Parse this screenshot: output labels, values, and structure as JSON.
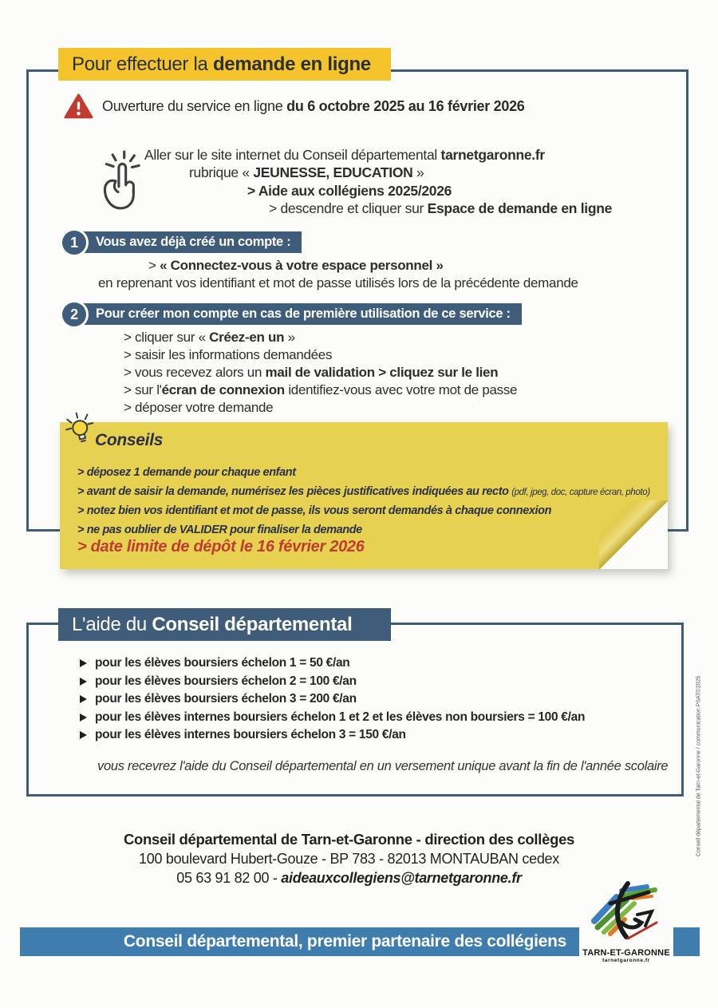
{
  "colors": {
    "accent_blue": "#3f5c7a",
    "band_blue": "#3e7dad",
    "title_yellow": "#f5c32c",
    "note_yellow": "#e6d150",
    "alert_red": "#c13b33"
  },
  "icons": {
    "warning": "warning-triangle",
    "hand": "click-hand",
    "bulb": "lightbulb",
    "bullet": "triangle-right"
  },
  "section_online": {
    "title_segments": [
      [
        "Pour effectuer la ",
        ""
      ],
      [
        "demande en ligne",
        "b"
      ]
    ],
    "alert_segments": [
      [
        "Ouverture du service en ligne ",
        ""
      ],
      [
        "du 6 octobre 2025 au 16 février 2026",
        "b"
      ]
    ],
    "instructions": [
      {
        "segments": [
          [
            "Aller sur le site internet du Conseil départemental ",
            ""
          ],
          [
            "tarnetgaronne.fr",
            "b"
          ]
        ]
      },
      {
        "segments": [
          [
            "rubrique « ",
            ""
          ],
          [
            "JEUNESSE, EDUCATION",
            "b"
          ],
          [
            " »",
            ""
          ]
        ]
      },
      {
        "segments": [
          [
            "> Aide aux collégiens 2025/2026",
            "b"
          ]
        ]
      },
      {
        "segments": [
          [
            "> descendre et cliquer sur ",
            ""
          ],
          [
            "Espace de demande en ligne",
            "b"
          ]
        ]
      }
    ],
    "step1": {
      "number": "1",
      "header": "Vous avez déjà créé un compte :",
      "lines": [
        {
          "segments": [
            [
              "> ",
              ""
            ],
            [
              "« Connectez-vous à votre espace personnel »",
              "b"
            ]
          ]
        },
        {
          "segments": [
            [
              "en reprenant vos identifiant et mot de passe utilisés lors de la précédente demande",
              ""
            ]
          ]
        }
      ]
    },
    "step2": {
      "number": "2",
      "header": "Pour créer mon compte en cas de première utilisation de ce service :",
      "lines": [
        {
          "segments": [
            [
              "> cliquer sur « ",
              ""
            ],
            [
              "Créez-en un",
              "b"
            ],
            [
              " »",
              ""
            ]
          ]
        },
        {
          "segments": [
            [
              "> saisir les informations demandées",
              ""
            ]
          ]
        },
        {
          "segments": [
            [
              "> vous recevez alors un ",
              ""
            ],
            [
              "mail de validation > cliquez sur le lien",
              "b"
            ]
          ]
        },
        {
          "segments": [
            [
              "> sur l'",
              ""
            ],
            [
              "écran de connexion",
              "b"
            ],
            [
              " identifiez-vous avec votre mot de passe",
              ""
            ]
          ]
        },
        {
          "segments": [
            [
              "> déposer votre demande",
              ""
            ]
          ]
        }
      ]
    }
  },
  "conseils": {
    "title": "Conseils",
    "items": [
      {
        "segments": [
          [
            "> déposez 1 demande pour chaque enfant",
            ""
          ]
        ]
      },
      {
        "segments": [
          [
            "> avant de saisir la demande, numérisez les pièces justificatives indiquées au recto ",
            ""
          ],
          [
            "(pdf, jpeg, doc, capture écran, photo)",
            "sm"
          ]
        ]
      },
      {
        "segments": [
          [
            "> notez bien vos identifiant et mot de passe, ils vous seront demandés à chaque connexion",
            ""
          ]
        ]
      },
      {
        "segments": [
          [
            "> ne pas oublier de VALIDER pour finaliser la demande",
            ""
          ]
        ]
      }
    ],
    "deadline": "> date limite de dépôt le 16 février 2026"
  },
  "section_aid": {
    "title_segments": [
      [
        "L'aide du ",
        ""
      ],
      [
        "Conseil départemental",
        "b"
      ]
    ],
    "items": [
      "pour les élèves boursiers échelon 1  =  50 €/an",
      "pour les élèves boursiers échelon 2  =  100 €/an",
      "pour les élèves boursiers échelon 3  =  200 €/an",
      "pour les élèves internes boursiers échelon 1 et 2 et les élèves non boursiers  =  100 €/an",
      "pour les élèves internes boursiers échelon 3  =  150 €/an"
    ],
    "note": "vous recevrez l'aide du Conseil départemental en un versement unique avant la fin de l'année scolaire"
  },
  "contact": {
    "line1": "Conseil départemental de Tarn-et-Garonne - direction des collèges",
    "line2": "100 boulevard Hubert-Gouze - BP 783 - 82013 MONTAUBAN cedex",
    "phone_segments": [
      [
        "05 63 91 82 00 - ",
        ""
      ],
      [
        "aideauxcollegiens@tarnetgaronne.fr",
        "bi"
      ]
    ]
  },
  "footer": {
    "banner": "Conseil départemental, premier partenaire des collégiens",
    "logo_title": "TARN-ET-GARONNE",
    "logo_url": "tarnetgaronne.fr"
  },
  "page": {
    "credit_vertical": "Conseil départemental de Tarn-et-Garonne / communication PSAT©2025"
  }
}
